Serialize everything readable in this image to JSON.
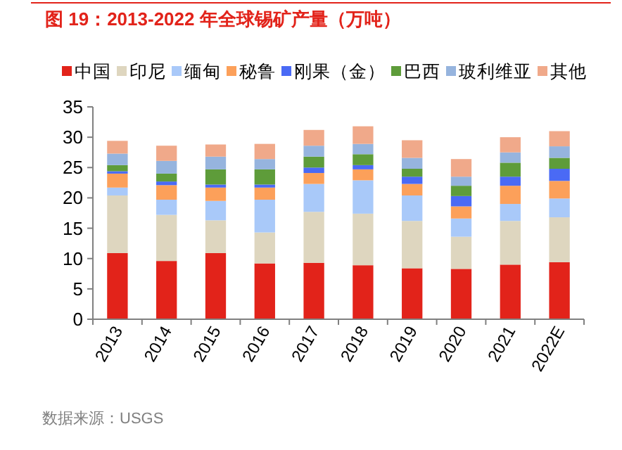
{
  "chart_data": {
    "type": "bar",
    "stacked": true,
    "title": "图 19：2013-2022 年全球锡矿产量（万吨）",
    "categories": [
      "2013",
      "2014",
      "2015",
      "2016",
      "2017",
      "2018",
      "2019",
      "2020",
      "2021",
      "2022E"
    ],
    "series": [
      {
        "name": "中国",
        "color": "#e2231a",
        "values": [
          10.9,
          9.6,
          10.9,
          9.2,
          9.3,
          8.9,
          8.4,
          8.3,
          9.0,
          9.4
        ]
      },
      {
        "name": "印尼",
        "color": "#ded6bf",
        "values": [
          9.5,
          7.6,
          5.4,
          5.1,
          8.4,
          8.5,
          7.8,
          5.3,
          7.2,
          7.4
        ]
      },
      {
        "name": "缅甸",
        "color": "#a9c9f9",
        "values": [
          1.3,
          2.5,
          3.2,
          5.4,
          4.6,
          5.5,
          4.2,
          3.0,
          2.8,
          3.1
        ]
      },
      {
        "name": "秘鲁",
        "color": "#fca05a",
        "values": [
          2.3,
          2.4,
          2.2,
          2.0,
          1.8,
          1.8,
          1.9,
          2.0,
          3.0,
          2.9
        ]
      },
      {
        "name": "刚果（金）",
        "color": "#4a6af5",
        "values": [
          0.4,
          0.6,
          0.5,
          0.5,
          0.9,
          0.7,
          1.2,
          1.7,
          1.5,
          2.0
        ]
      },
      {
        "name": "巴西",
        "color": "#5e9c3a",
        "values": [
          1.0,
          1.3,
          2.5,
          2.5,
          1.8,
          1.8,
          1.3,
          1.7,
          2.3,
          1.8
        ]
      },
      {
        "name": "玻利维亚",
        "color": "#96b4de",
        "values": [
          1.9,
          2.1,
          2.1,
          1.7,
          1.8,
          1.7,
          1.8,
          1.5,
          1.7,
          1.9
        ]
      },
      {
        "name": "其他",
        "color": "#f0a98a",
        "values": [
          2.1,
          2.5,
          2.0,
          2.5,
          2.6,
          2.9,
          2.9,
          2.9,
          2.5,
          2.5
        ]
      }
    ],
    "ylim": [
      0,
      35
    ],
    "yticks": [
      0,
      5,
      10,
      15,
      20,
      25,
      30,
      35
    ],
    "grid": false,
    "legend": "top",
    "annotations": [
      "数据来源：USGS"
    ]
  }
}
